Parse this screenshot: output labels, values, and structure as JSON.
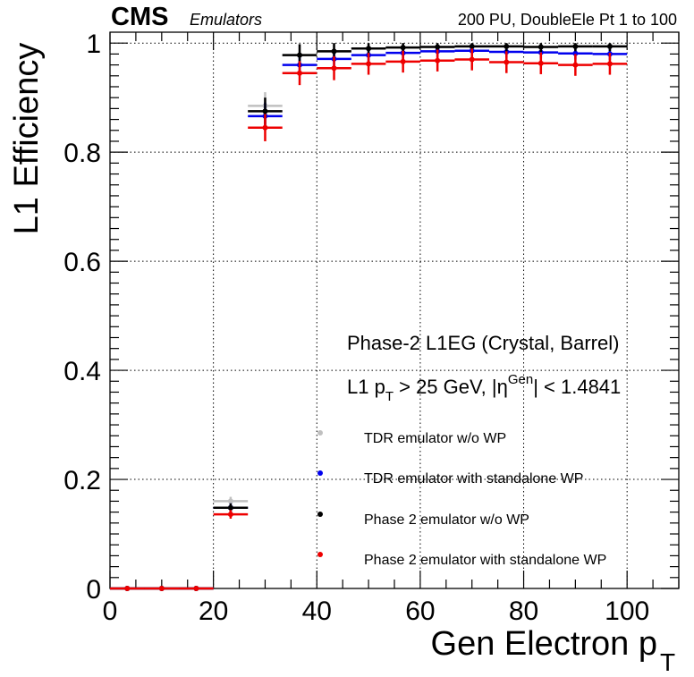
{
  "header": {
    "cms_label": "CMS",
    "emulators_label": "Emulators",
    "run_info": "200 PU, DoubleEle Pt 1 to 100"
  },
  "annotations": {
    "line1": "Phase-2 L1EG (Crystal, Barrel)",
    "line2_prefix": "L1 p",
    "line2_sub": "T",
    "line2_mid": " > 25 GeV, |η",
    "line2_sup": "Gen",
    "line2_suffix": "| < 1.4841"
  },
  "colors": {
    "tdr_nowp": "#c0c0c0",
    "tdr_wp": "#0000ee",
    "phase2_nowp": "#000000",
    "phase2_wp": "#ee0000"
  },
  "chart_data": {
    "type": "scatter",
    "title": "",
    "xlabel": "Gen Electron p",
    "xlabel_sub": "T",
    "ylabel": "L1 Efficiency",
    "xlim": [
      0,
      110
    ],
    "ylim": [
      0,
      1.02
    ],
    "x_ticks": [
      0,
      20,
      40,
      60,
      80,
      100
    ],
    "y_ticks": [
      0,
      0.2,
      0.4,
      0.6,
      0.8,
      1
    ],
    "y_tick_labels": [
      "0",
      "0.2",
      "0.4",
      "0.6",
      "0.8",
      "1"
    ],
    "grid": true,
    "legend_position": "bottom-right",
    "bin_edges": [
      0,
      6.6667,
      13.3333,
      20,
      26.6667,
      33.3333,
      40,
      46.6667,
      53.3333,
      60,
      66.6667,
      73.3333,
      80,
      86.6667,
      93.3333,
      100
    ],
    "x": [
      3.33,
      10.0,
      16.67,
      23.33,
      30.0,
      36.67,
      43.33,
      50.0,
      56.67,
      63.33,
      70.0,
      76.67,
      83.33,
      90.0,
      96.67
    ],
    "series": [
      {
        "name": "TDR emulator w/o WP",
        "color": "#c0c0c0",
        "values": [
          0,
          0,
          0,
          0.16,
          0.885,
          0.978,
          0.985,
          0.99,
          0.992,
          0.993,
          0.994,
          0.994,
          0.993,
          0.994,
          0.994
        ],
        "errors": [
          0,
          0,
          0,
          0.008,
          0.025,
          0.02,
          0.018,
          0.012,
          0.01,
          0.01,
          0.009,
          0.009,
          0.009,
          0.009,
          0.009
        ]
      },
      {
        "name": "TDR emulator with standalone WP",
        "color": "#0000ee",
        "values": [
          0,
          0,
          0,
          0.148,
          0.866,
          0.96,
          0.971,
          0.978,
          0.982,
          0.985,
          0.986,
          0.984,
          0.983,
          0.981,
          0.98
        ],
        "errors": [
          0,
          0,
          0,
          0.008,
          0.025,
          0.02,
          0.018,
          0.014,
          0.012,
          0.012,
          0.011,
          0.011,
          0.011,
          0.011,
          0.011
        ]
      },
      {
        "name": "Phase 2 emulator w/o WP",
        "color": "#000000",
        "values": [
          0,
          0,
          0,
          0.148,
          0.875,
          0.978,
          0.985,
          0.99,
          0.992,
          0.993,
          0.994,
          0.994,
          0.993,
          0.994,
          0.994
        ],
        "errors": [
          0,
          0,
          0,
          0.008,
          0.025,
          0.02,
          0.018,
          0.012,
          0.01,
          0.01,
          0.009,
          0.009,
          0.009,
          0.009,
          0.009
        ]
      },
      {
        "name": "Phase 2 emulator with standalone WP",
        "color": "#ee0000",
        "values": [
          0,
          0,
          0,
          0.136,
          0.845,
          0.945,
          0.954,
          0.962,
          0.966,
          0.968,
          0.97,
          0.965,
          0.963,
          0.96,
          0.962
        ],
        "errors": [
          0,
          0,
          0,
          0.008,
          0.025,
          0.022,
          0.022,
          0.02,
          0.02,
          0.02,
          0.02,
          0.02,
          0.02,
          0.02,
          0.02
        ]
      }
    ]
  }
}
